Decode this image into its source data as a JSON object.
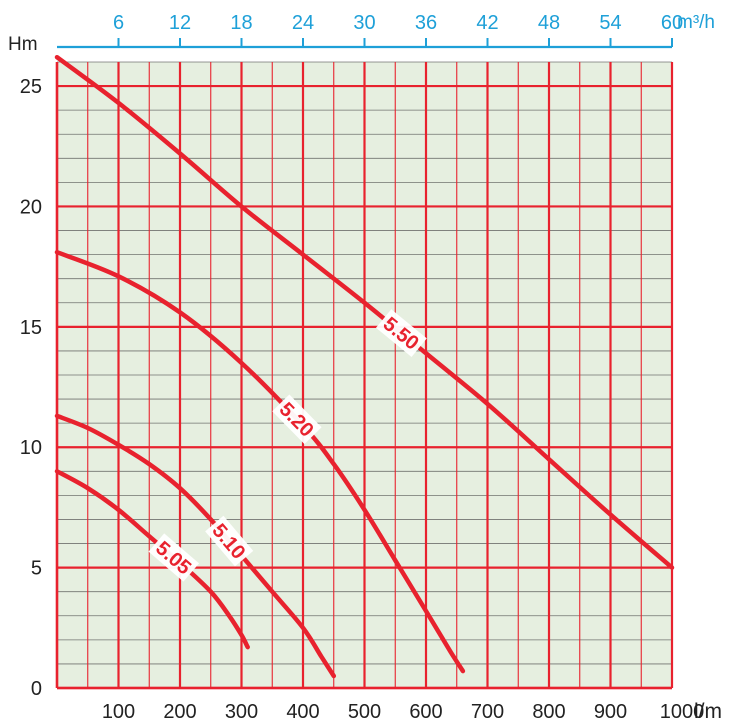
{
  "chart_data": {
    "type": "line",
    "x_axis_bottom": {
      "label": "l/m",
      "range": [
        0,
        1000
      ],
      "ticks": [
        100,
        200,
        300,
        400,
        500,
        600,
        700,
        800,
        900,
        1000
      ]
    },
    "x_axis_top": {
      "label": "m³/h",
      "range": [
        0,
        60
      ],
      "ticks": [
        6,
        12,
        18,
        24,
        30,
        36,
        42,
        48,
        54,
        60
      ]
    },
    "y_axis": {
      "label": "Hm",
      "range": [
        0,
        26
      ],
      "ticks": [
        0,
        5,
        10,
        15,
        20,
        25
      ]
    },
    "grid": true,
    "colors": {
      "curve": "#e8222e",
      "grid": "#e8222e",
      "plot_background": "#e6efe0",
      "top_axis": "#1ea0d8"
    },
    "series": [
      {
        "name": "5.50",
        "points": [
          [
            0,
            26.2
          ],
          [
            100,
            24.3
          ],
          [
            200,
            22.2
          ],
          [
            300,
            20.0
          ],
          [
            400,
            18.0
          ],
          [
            500,
            16.0
          ],
          [
            600,
            13.9
          ],
          [
            700,
            11.8
          ],
          [
            800,
            9.5
          ],
          [
            900,
            7.2
          ],
          [
            1000,
            5.0
          ]
        ]
      },
      {
        "name": "5.20",
        "points": [
          [
            0,
            18.1
          ],
          [
            100,
            17.1
          ],
          [
            200,
            15.6
          ],
          [
            300,
            13.5
          ],
          [
            400,
            10.9
          ],
          [
            450,
            9.3
          ],
          [
            500,
            7.4
          ],
          [
            550,
            5.3
          ],
          [
            600,
            3.2
          ],
          [
            640,
            1.5
          ],
          [
            660,
            0.7
          ]
        ]
      },
      {
        "name": "5.10",
        "points": [
          [
            0,
            11.3
          ],
          [
            50,
            10.8
          ],
          [
            100,
            10.1
          ],
          [
            150,
            9.3
          ],
          [
            200,
            8.3
          ],
          [
            250,
            7.0
          ],
          [
            300,
            5.5
          ],
          [
            350,
            4.0
          ],
          [
            400,
            2.5
          ],
          [
            430,
            1.3
          ],
          [
            450,
            0.5
          ]
        ]
      },
      {
        "name": "5.05",
        "points": [
          [
            0,
            9.0
          ],
          [
            50,
            8.3
          ],
          [
            100,
            7.4
          ],
          [
            150,
            6.3
          ],
          [
            200,
            5.2
          ],
          [
            250,
            4.0
          ],
          [
            280,
            3.0
          ],
          [
            300,
            2.2
          ],
          [
            310,
            1.7
          ]
        ]
      }
    ]
  }
}
